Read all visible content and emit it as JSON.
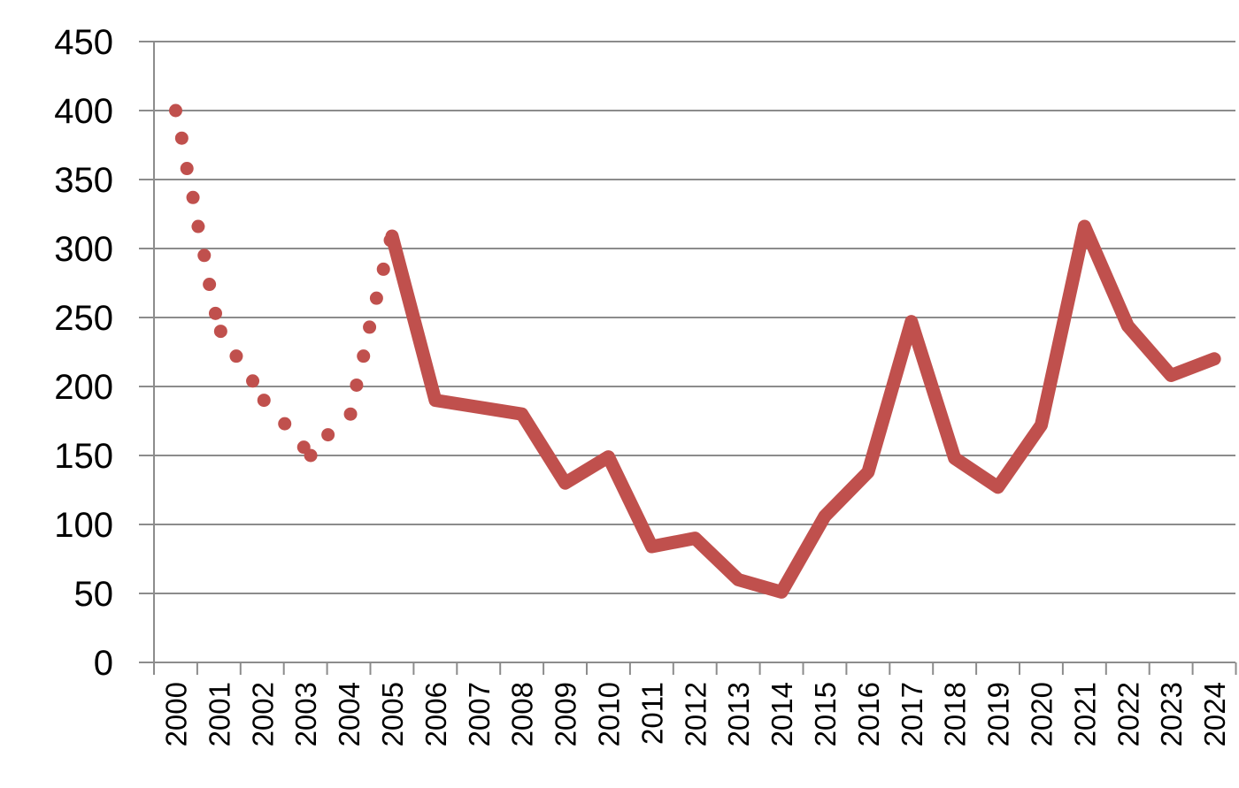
{
  "chart_data": {
    "type": "line",
    "title": "",
    "xlabel": "",
    "ylabel": "",
    "ylim": [
      0,
      450
    ],
    "yticks": [
      0,
      50,
      100,
      150,
      200,
      250,
      300,
      350,
      400,
      450
    ],
    "ytick_labels": [
      "0",
      "50",
      "100",
      "150",
      "200",
      "250",
      "300",
      "350",
      "400",
      "450"
    ],
    "categories": [
      "2000",
      "2001",
      "2002",
      "2003",
      "2004",
      "2005",
      "2006",
      "2007",
      "2008",
      "2009",
      "2010",
      "2011",
      "2012",
      "2013",
      "2014",
      "2015",
      "2016",
      "2017",
      "2018",
      "2019",
      "2020",
      "2021",
      "2022",
      "2023",
      "2024"
    ],
    "grid": true,
    "legend": "none",
    "series": [
      {
        "style": "dotted",
        "color": "#c0504d",
        "points": [
          {
            "x": 2000.0,
            "y": 400
          },
          {
            "x": 2000.14,
            "y": 380
          },
          {
            "x": 2000.26,
            "y": 358
          },
          {
            "x": 2000.4,
            "y": 337
          },
          {
            "x": 2000.52,
            "y": 316
          },
          {
            "x": 2000.66,
            "y": 295
          },
          {
            "x": 2000.78,
            "y": 274
          },
          {
            "x": 2000.92,
            "y": 253
          },
          {
            "x": 2001.04,
            "y": 240
          },
          {
            "x": 2001.4,
            "y": 222
          },
          {
            "x": 2001.78,
            "y": 204
          },
          {
            "x": 2002.04,
            "y": 190
          },
          {
            "x": 2002.52,
            "y": 173
          },
          {
            "x": 2002.96,
            "y": 156
          },
          {
            "x": 2003.12,
            "y": 150
          },
          {
            "x": 2003.52,
            "y": 165
          },
          {
            "x": 2004.04,
            "y": 180
          },
          {
            "x": 2004.18,
            "y": 201
          },
          {
            "x": 2004.34,
            "y": 222
          },
          {
            "x": 2004.48,
            "y": 243
          },
          {
            "x": 2004.64,
            "y": 264
          },
          {
            "x": 2004.8,
            "y": 285
          },
          {
            "x": 2004.96,
            "y": 306
          }
        ]
      },
      {
        "style": "solid",
        "color": "#c0504d",
        "points": [
          {
            "x": 2005,
            "y": 309
          },
          {
            "x": 2006,
            "y": 190
          },
          {
            "x": 2007,
            "y": 185
          },
          {
            "x": 2008,
            "y": 180
          },
          {
            "x": 2009,
            "y": 130
          },
          {
            "x": 2010,
            "y": 149
          },
          {
            "x": 2011,
            "y": 84
          },
          {
            "x": 2012,
            "y": 90
          },
          {
            "x": 2013,
            "y": 60
          },
          {
            "x": 2014,
            "y": 51
          },
          {
            "x": 2015,
            "y": 106
          },
          {
            "x": 2016,
            "y": 138
          },
          {
            "x": 2017,
            "y": 247
          },
          {
            "x": 2018,
            "y": 148
          },
          {
            "x": 2019,
            "y": 127
          },
          {
            "x": 2020,
            "y": 172
          },
          {
            "x": 2021,
            "y": 316
          },
          {
            "x": 2022,
            "y": 244
          },
          {
            "x": 2023,
            "y": 208
          },
          {
            "x": 2024,
            "y": 220
          }
        ]
      }
    ]
  },
  "colors": {
    "series_line": "#c0504d",
    "gridline": "#8c8c8c",
    "axis": "#8c8c8c",
    "text": "#000000"
  }
}
